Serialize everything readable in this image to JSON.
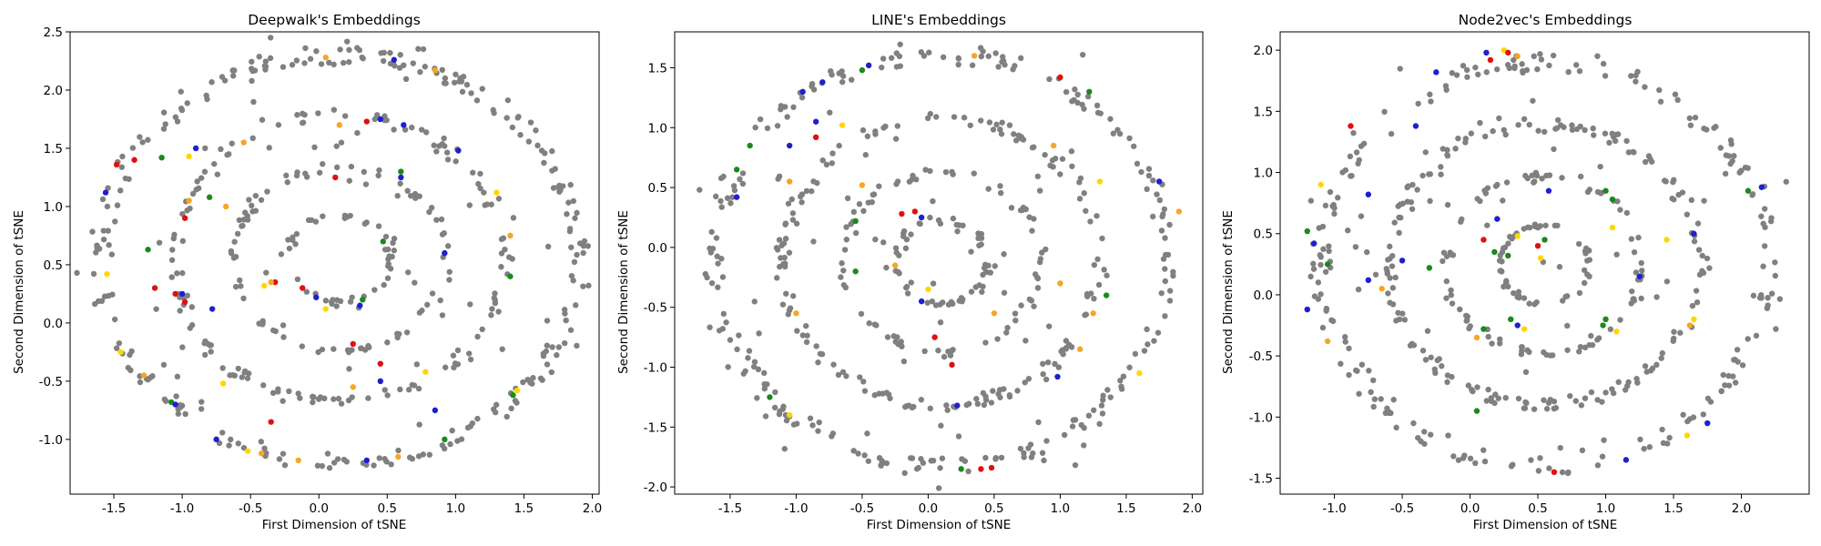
{
  "chart_data": [
    {
      "type": "scatter",
      "title": "Deepwalk's Embeddings",
      "xlabel": "First Dimension of tSNE",
      "ylabel": "Second Dimension of tSNE",
      "xlim": [
        -1.82,
        2.05
      ],
      "ylim": [
        -1.47,
        2.5
      ],
      "xticks": [
        "-1.5",
        "-1.0",
        "-0.5",
        "0.0",
        "0.5",
        "1.0",
        "1.5",
        "2.0"
      ],
      "yticks": [
        "-1.0",
        "-0.5",
        "0.0",
        "0.5",
        "1.0",
        "1.5",
        "2.0",
        "2.5"
      ],
      "ring_radii": [
        1.75,
        1.22,
        0.78,
        0.38
      ],
      "center": [
        0.15,
        0.55
      ],
      "gray_color": "#808080",
      "gray_points_count": 560,
      "colored_points": [
        {
          "color": "#1f1fd0",
          "x": -1.56,
          "y": 1.12
        },
        {
          "color": "#e01010",
          "x": -1.48,
          "y": 1.36
        },
        {
          "color": "#e01010",
          "x": -1.35,
          "y": 1.4
        },
        {
          "color": "#1a8a1a",
          "x": -1.15,
          "y": 1.42
        },
        {
          "color": "#1f1fd0",
          "x": -0.9,
          "y": 1.5
        },
        {
          "color": "#ffd700",
          "x": -0.95,
          "y": 1.43
        },
        {
          "color": "#f5a623",
          "x": -0.55,
          "y": 1.55
        },
        {
          "color": "#f5a623",
          "x": 0.05,
          "y": 2.28
        },
        {
          "color": "#1f1fd0",
          "x": 0.55,
          "y": 2.26
        },
        {
          "color": "#f5a623",
          "x": 0.85,
          "y": 2.17
        },
        {
          "color": "#e01010",
          "x": 0.35,
          "y": 1.73
        },
        {
          "color": "#1f1fd0",
          "x": 0.45,
          "y": 1.75
        },
        {
          "color": "#1f1fd0",
          "x": 0.62,
          "y": 1.7
        },
        {
          "color": "#f5a623",
          "x": 0.15,
          "y": 1.7
        },
        {
          "color": "#1f1fd0",
          "x": 1.02,
          "y": 1.48
        },
        {
          "color": "#ffd700",
          "x": 1.3,
          "y": 1.12
        },
        {
          "color": "#1a8a1a",
          "x": 0.6,
          "y": 1.3
        },
        {
          "color": "#1f1fd0",
          "x": 0.6,
          "y": 1.25
        },
        {
          "color": "#e01010",
          "x": 0.12,
          "y": 1.25
        },
        {
          "color": "#f5a623",
          "x": -0.95,
          "y": 1.05
        },
        {
          "color": "#e01010",
          "x": -0.98,
          "y": 0.9
        },
        {
          "color": "#f5a623",
          "x": -0.68,
          "y": 1.0
        },
        {
          "color": "#1a8a1a",
          "x": -0.8,
          "y": 1.08
        },
        {
          "color": "#1a8a1a",
          "x": -1.25,
          "y": 0.63
        },
        {
          "color": "#ffd700",
          "x": -1.55,
          "y": 0.42
        },
        {
          "color": "#e01010",
          "x": -1.05,
          "y": 0.25
        },
        {
          "color": "#1f1fd0",
          "x": -1.0,
          "y": 0.25
        },
        {
          "color": "#e01010",
          "x": -0.98,
          "y": 0.18
        },
        {
          "color": "#e01010",
          "x": -1.2,
          "y": 0.3
        },
        {
          "color": "#1f1fd0",
          "x": -0.78,
          "y": 0.12
        },
        {
          "color": "#e01010",
          "x": -0.32,
          "y": 0.35
        },
        {
          "color": "#e01010",
          "x": -0.12,
          "y": 0.3
        },
        {
          "color": "#1f1fd0",
          "x": -0.02,
          "y": 0.22
        },
        {
          "color": "#f5a623",
          "x": -0.35,
          "y": 0.35
        },
        {
          "color": "#ffd700",
          "x": -0.4,
          "y": 0.32
        },
        {
          "color": "#ffd700",
          "x": 0.05,
          "y": 0.12
        },
        {
          "color": "#1a8a1a",
          "x": 0.32,
          "y": 0.2
        },
        {
          "color": "#1f1fd0",
          "x": 0.3,
          "y": 0.15
        },
        {
          "color": "#1a8a1a",
          "x": 0.47,
          "y": 0.7
        },
        {
          "color": "#1f1fd0",
          "x": 0.92,
          "y": 0.6
        },
        {
          "color": "#1a8a1a",
          "x": 1.4,
          "y": 0.4
        },
        {
          "color": "#f5a623",
          "x": 1.4,
          "y": 0.75
        },
        {
          "color": "#e01010",
          "x": 0.25,
          "y": -0.18
        },
        {
          "color": "#f5a623",
          "x": 0.25,
          "y": -0.55
        },
        {
          "color": "#e01010",
          "x": 0.45,
          "y": -0.35
        },
        {
          "color": "#1f1fd0",
          "x": 0.45,
          "y": -0.5
        },
        {
          "color": "#ffd700",
          "x": 0.78,
          "y": -0.42
        },
        {
          "color": "#1a8a1a",
          "x": -1.08,
          "y": -0.68
        },
        {
          "color": "#1f1fd0",
          "x": -1.05,
          "y": -0.7
        },
        {
          "color": "#f5a623",
          "x": -1.28,
          "y": -0.45
        },
        {
          "color": "#ffd700",
          "x": -1.45,
          "y": -0.25
        },
        {
          "color": "#ffd700",
          "x": -0.7,
          "y": -0.52
        },
        {
          "color": "#1f1fd0",
          "x": -0.75,
          "y": -1.0
        },
        {
          "color": "#e01010",
          "x": -0.35,
          "y": -0.85
        },
        {
          "color": "#ffd700",
          "x": -0.52,
          "y": -1.1
        },
        {
          "color": "#f5a623",
          "x": -0.42,
          "y": -1.12
        },
        {
          "color": "#f5a623",
          "x": -0.15,
          "y": -1.18
        },
        {
          "color": "#1f1fd0",
          "x": 0.35,
          "y": -1.18
        },
        {
          "color": "#f5a623",
          "x": 0.58,
          "y": -1.15
        },
        {
          "color": "#1a8a1a",
          "x": 0.92,
          "y": -1.0
        },
        {
          "color": "#1f1fd0",
          "x": 0.85,
          "y": -0.75
        },
        {
          "color": "#ffd700",
          "x": 1.45,
          "y": -0.58
        },
        {
          "color": "#1a8a1a",
          "x": 1.42,
          "y": -0.62
        }
      ]
    },
    {
      "type": "scatter",
      "title": "LINE's Embeddings",
      "xlabel": "First Dimension of tSNE",
      "ylabel": "Second Dimension of tSNE",
      "xlim": [
        -1.92,
        2.08
      ],
      "ylim": [
        -2.06,
        1.8
      ],
      "xticks": [
        "-1.5",
        "-1.0",
        "-0.5",
        "0.0",
        "0.5",
        "1.0",
        "1.5",
        "2.0"
      ],
      "yticks": [
        "-2.0",
        "-1.5",
        "-1.0",
        "-0.5",
        "0.0",
        "0.5",
        "1.0",
        "1.5"
      ],
      "ring_radii": [
        1.72,
        1.2,
        0.75,
        0.35
      ],
      "center": [
        0.1,
        -0.12
      ],
      "gray_color": "#808080",
      "gray_points_count": 560,
      "colored_points": [
        {
          "color": "#1f1fd0",
          "x": -0.95,
          "y": 1.3
        },
        {
          "color": "#1f1fd0",
          "x": -0.8,
          "y": 1.38
        },
        {
          "color": "#1a8a1a",
          "x": -0.5,
          "y": 1.48
        },
        {
          "color": "#1f1fd0",
          "x": -0.45,
          "y": 1.52
        },
        {
          "color": "#1a8a1a",
          "x": -1.35,
          "y": 0.85
        },
        {
          "color": "#1a8a1a",
          "x": -1.45,
          "y": 0.65
        },
        {
          "color": "#1f1fd0",
          "x": -1.05,
          "y": 0.85
        },
        {
          "color": "#1f1fd0",
          "x": -0.85,
          "y": 1.05
        },
        {
          "color": "#e01010",
          "x": -0.85,
          "y": 0.92
        },
        {
          "color": "#ffd700",
          "x": -0.65,
          "y": 1.02
        },
        {
          "color": "#f5a623",
          "x": 0.35,
          "y": 1.6
        },
        {
          "color": "#e01010",
          "x": 1.0,
          "y": 1.42
        },
        {
          "color": "#1a8a1a",
          "x": 1.22,
          "y": 1.3
        },
        {
          "color": "#f5a623",
          "x": 0.95,
          "y": 0.85
        },
        {
          "color": "#ffd700",
          "x": 1.3,
          "y": 0.55
        },
        {
          "color": "#1f1fd0",
          "x": 1.75,
          "y": 0.55
        },
        {
          "color": "#f5a623",
          "x": 1.9,
          "y": 0.3
        },
        {
          "color": "#1f1fd0",
          "x": -1.45,
          "y": 0.42
        },
        {
          "color": "#f5a623",
          "x": -1.05,
          "y": 0.55
        },
        {
          "color": "#f5a623",
          "x": -0.5,
          "y": 0.52
        },
        {
          "color": "#1a8a1a",
          "x": -0.55,
          "y": 0.22
        },
        {
          "color": "#e01010",
          "x": -0.2,
          "y": 0.28
        },
        {
          "color": "#e01010",
          "x": -0.1,
          "y": 0.3
        },
        {
          "color": "#1f1fd0",
          "x": -0.05,
          "y": 0.25
        },
        {
          "color": "#1a8a1a",
          "x": -0.55,
          "y": -0.2
        },
        {
          "color": "#f5a623",
          "x": -0.25,
          "y": -0.15
        },
        {
          "color": "#ffd700",
          "x": 0.0,
          "y": -0.35
        },
        {
          "color": "#1f1fd0",
          "x": -0.05,
          "y": -0.45
        },
        {
          "color": "#f5a623",
          "x": 0.5,
          "y": -0.55
        },
        {
          "color": "#f5a623",
          "x": 1.0,
          "y": -0.3
        },
        {
          "color": "#1a8a1a",
          "x": 1.35,
          "y": -0.4
        },
        {
          "color": "#f5a623",
          "x": 1.25,
          "y": -0.55
        },
        {
          "color": "#f5a623",
          "x": -1.0,
          "y": -0.55
        },
        {
          "color": "#e01010",
          "x": 0.05,
          "y": -0.75
        },
        {
          "color": "#e01010",
          "x": 0.18,
          "y": -0.98
        },
        {
          "color": "#1f1fd0",
          "x": 0.22,
          "y": -1.32
        },
        {
          "color": "#1a8a1a",
          "x": -1.2,
          "y": -1.25
        },
        {
          "color": "#ffd700",
          "x": -1.05,
          "y": -1.4
        },
        {
          "color": "#1f1fd0",
          "x": 0.98,
          "y": -1.08
        },
        {
          "color": "#f5a623",
          "x": 1.15,
          "y": -0.85
        },
        {
          "color": "#ffd700",
          "x": 1.6,
          "y": -1.05
        },
        {
          "color": "#1a8a1a",
          "x": 0.25,
          "y": -1.85
        },
        {
          "color": "#e01010",
          "x": 0.4,
          "y": -1.85
        },
        {
          "color": "#e01010",
          "x": 0.48,
          "y": -1.84
        }
      ]
    },
    {
      "type": "scatter",
      "title": "Node2vec's Embeddings",
      "xlabel": "First Dimension of tSNE",
      "ylabel": "Second Dimension of tSNE",
      "xlim": [
        -1.4,
        2.5
      ],
      "ylim": [
        -1.63,
        2.15
      ],
      "xticks": [
        "-1.0",
        "-0.5",
        "0.0",
        "0.5",
        "1.0",
        "1.5",
        "2.0"
      ],
      "yticks": [
        "-1.5",
        "-1.0",
        "-0.5",
        "0.0",
        "0.5",
        "1.0",
        "1.5",
        "2.0"
      ],
      "ring_radii": [
        1.65,
        1.15,
        0.72,
        0.33
      ],
      "center": [
        0.55,
        0.25
      ],
      "gray_color": "#808080",
      "gray_points_count": 560,
      "colored_points": [
        {
          "color": "#ffd700",
          "x": 0.25,
          "y": 2.0
        },
        {
          "color": "#e01010",
          "x": 0.28,
          "y": 1.98
        },
        {
          "color": "#1f1fd0",
          "x": 0.12,
          "y": 1.98
        },
        {
          "color": "#e01010",
          "x": 0.15,
          "y": 1.92
        },
        {
          "color": "#f5a623",
          "x": 0.35,
          "y": 1.95
        },
        {
          "color": "#1f1fd0",
          "x": -0.25,
          "y": 1.82
        },
        {
          "color": "#1f1fd0",
          "x": -0.4,
          "y": 1.38
        },
        {
          "color": "#e01010",
          "x": -0.88,
          "y": 1.38
        },
        {
          "color": "#ffd700",
          "x": -1.1,
          "y": 0.9
        },
        {
          "color": "#1f1fd0",
          "x": -0.75,
          "y": 0.82
        },
        {
          "color": "#1a8a1a",
          "x": -1.2,
          "y": 0.52
        },
        {
          "color": "#1f1fd0",
          "x": -1.15,
          "y": 0.42
        },
        {
          "color": "#1a8a1a",
          "x": -1.05,
          "y": 0.25
        },
        {
          "color": "#1f1fd0",
          "x": -0.75,
          "y": 0.12
        },
        {
          "color": "#f5a623",
          "x": -0.65,
          "y": 0.05
        },
        {
          "color": "#1f1fd0",
          "x": -0.5,
          "y": 0.28
        },
        {
          "color": "#1f1fd0",
          "x": -1.2,
          "y": -0.12
        },
        {
          "color": "#f5a623",
          "x": -1.05,
          "y": -0.38
        },
        {
          "color": "#1a8a1a",
          "x": -0.3,
          "y": 0.22
        },
        {
          "color": "#e01010",
          "x": 0.1,
          "y": 0.45
        },
        {
          "color": "#1f1fd0",
          "x": 0.2,
          "y": 0.62
        },
        {
          "color": "#ffd700",
          "x": 0.35,
          "y": 0.48
        },
        {
          "color": "#e01010",
          "x": 0.5,
          "y": 0.4
        },
        {
          "color": "#1f1fd0",
          "x": 0.58,
          "y": 0.85
        },
        {
          "color": "#ffd700",
          "x": 0.52,
          "y": 0.3
        },
        {
          "color": "#1a8a1a",
          "x": 0.18,
          "y": 0.35
        },
        {
          "color": "#1a8a1a",
          "x": 0.28,
          "y": 0.32
        },
        {
          "color": "#1a8a1a",
          "x": 0.55,
          "y": 0.45
        },
        {
          "color": "#1a8a1a",
          "x": 1.0,
          "y": 0.85
        },
        {
          "color": "#1a8a1a",
          "x": 1.05,
          "y": 0.78
        },
        {
          "color": "#ffd700",
          "x": 1.05,
          "y": 0.55
        },
        {
          "color": "#1f1fd0",
          "x": 1.25,
          "y": 0.15
        },
        {
          "color": "#ffd700",
          "x": 1.45,
          "y": 0.45
        },
        {
          "color": "#1f1fd0",
          "x": 1.65,
          "y": 0.5
        },
        {
          "color": "#1a8a1a",
          "x": 2.05,
          "y": 0.85
        },
        {
          "color": "#1f1fd0",
          "x": 2.15,
          "y": 0.88
        },
        {
          "color": "#1a8a1a",
          "x": 0.3,
          "y": -0.2
        },
        {
          "color": "#1f1fd0",
          "x": 0.35,
          "y": -0.25
        },
        {
          "color": "#ffd700",
          "x": 0.4,
          "y": -0.28
        },
        {
          "color": "#1a8a1a",
          "x": 0.1,
          "y": -0.28
        },
        {
          "color": "#1a8a1a",
          "x": 0.98,
          "y": -0.25
        },
        {
          "color": "#1a8a1a",
          "x": 1.0,
          "y": -0.2
        },
        {
          "color": "#ffd700",
          "x": 1.08,
          "y": -0.3
        },
        {
          "color": "#f5a623",
          "x": 0.05,
          "y": -0.35
        },
        {
          "color": "#1a8a1a",
          "x": 0.05,
          "y": -0.95
        },
        {
          "color": "#1f1fd0",
          "x": 1.75,
          "y": -1.05
        },
        {
          "color": "#1f1fd0",
          "x": 1.15,
          "y": -1.35
        },
        {
          "color": "#e01010",
          "x": 0.62,
          "y": -1.45
        },
        {
          "color": "#ffd700",
          "x": 1.6,
          "y": -1.15
        },
        {
          "color": "#ffd700",
          "x": 1.65,
          "y": -0.2
        },
        {
          "color": "#f5a623",
          "x": 1.62,
          "y": -0.25
        }
      ]
    }
  ]
}
